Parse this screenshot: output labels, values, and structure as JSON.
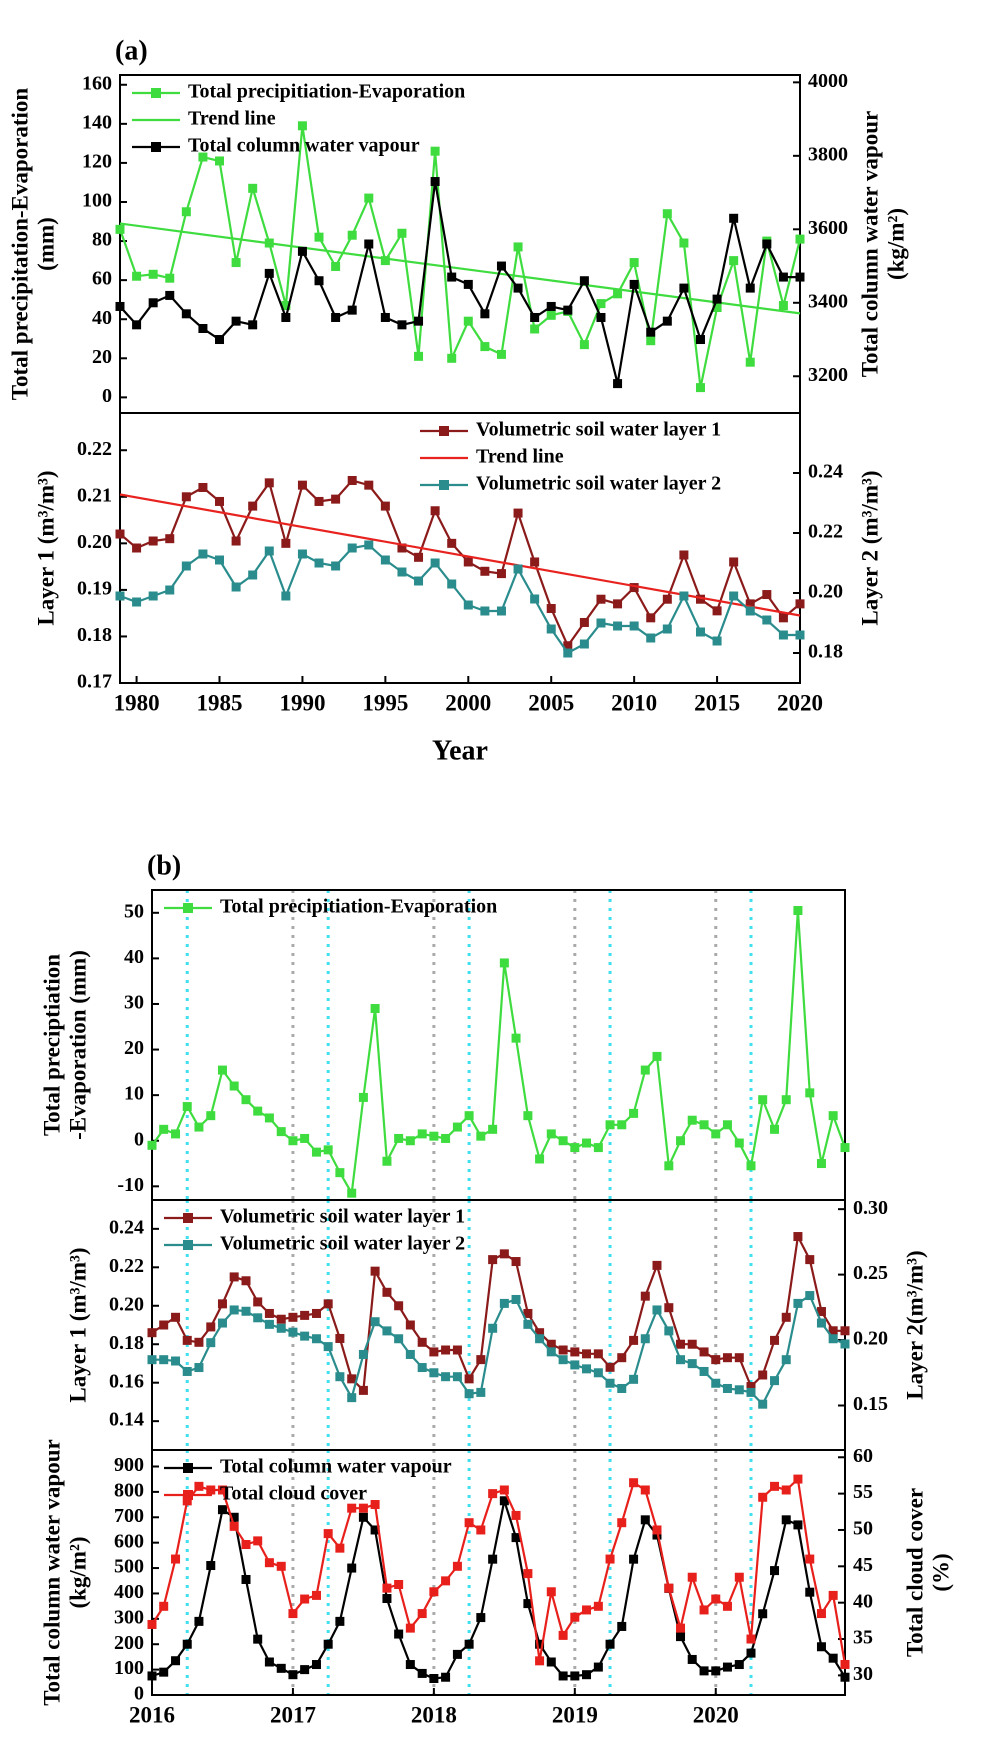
{
  "chart_data": [
    {
      "type": "line",
      "panel": "(a)",
      "legend": "upper left",
      "ylabel": [
        "Total precipitation-Evaporation",
        "(mm)"
      ],
      "y2label": [
        "Total column water vapour",
        "(kg/m²)"
      ],
      "xlim": [
        1979,
        2020
      ],
      "ylim": [
        -8,
        165
      ],
      "yticks": [
        0,
        20,
        40,
        60,
        80,
        100,
        120,
        140,
        160
      ],
      "y2lim": [
        3100,
        4020
      ],
      "y2ticks": [
        3200,
        3400,
        3600,
        3800,
        4000
      ],
      "x": [
        1979,
        1980,
        1981,
        1982,
        1983,
        1984,
        1985,
        1986,
        1987,
        1988,
        1989,
        1990,
        1991,
        1992,
        1993,
        1994,
        1995,
        1996,
        1997,
        1998,
        1999,
        2000,
        2001,
        2002,
        2003,
        2004,
        2005,
        2006,
        2007,
        2008,
        2009,
        2010,
        2011,
        2012,
        2013,
        2014,
        2015,
        2016,
        2017,
        2018,
        2019,
        2020
      ],
      "series": [
        {
          "name": "Total precipitiation-Evaporation",
          "color": "#3fdc3f",
          "marker": "square",
          "values": [
            86,
            62,
            63,
            61,
            95,
            123,
            121,
            69,
            107,
            79,
            47,
            139,
            82,
            67,
            83,
            102,
            70,
            84,
            21,
            126,
            20,
            39,
            26,
            22,
            77,
            35,
            42,
            44,
            27,
            48,
            53,
            69,
            29,
            94,
            79,
            5,
            46,
            70,
            18,
            80,
            47,
            81
          ]
        },
        {
          "name": "Trend line",
          "color": "#3fdc3f",
          "x": [
            1979,
            2020
          ],
          "values": [
            89,
            43
          ]
        },
        {
          "name": "Total column water vapour",
          "color": "#000000",
          "marker": "square",
          "axis": "y2",
          "values": [
            3390,
            3340,
            3400,
            3420,
            3370,
            3330,
            3300,
            3350,
            3340,
            3480,
            3360,
            3540,
            3460,
            3360,
            3380,
            3560,
            3360,
            3340,
            3350,
            3730,
            3470,
            3450,
            3370,
            3500,
            3440,
            3360,
            3390,
            3380,
            3460,
            3360,
            3180,
            3450,
            3320,
            3350,
            3440,
            3300,
            3410,
            3630,
            3440,
            3560,
            3470,
            3470
          ]
        }
      ]
    },
    {
      "type": "line",
      "legend": "upper right",
      "xlabel": "Year",
      "ylabel": [
        "Layer 1 (m³/m³)"
      ],
      "y2label": [
        "Layer 2 (m³/m³)"
      ],
      "xlim": [
        1979,
        2020
      ],
      "xticks": [
        1980,
        1985,
        1990,
        1995,
        2000,
        2005,
        2010,
        2015,
        2020
      ],
      "ylim": [
        0.17,
        0.228
      ],
      "yticks": [
        0.17,
        0.18,
        0.19,
        {
          "value": 0.2,
          "label": "0.20"
        },
        0.21,
        0.22
      ],
      "y2lim": [
        0.17,
        0.26
      ],
      "y2ticks": [
        0.18,
        {
          "value": 0.2,
          "label": "0.20"
        },
        0.22,
        0.24
      ],
      "x": [
        1979,
        1980,
        1981,
        1982,
        1983,
        1984,
        1985,
        1986,
        1987,
        1988,
        1989,
        1990,
        1991,
        1992,
        1993,
        1994,
        1995,
        1996,
        1997,
        1998,
        1999,
        2000,
        2001,
        2002,
        2003,
        2004,
        2005,
        2006,
        2007,
        2008,
        2009,
        2010,
        2011,
        2012,
        2013,
        2014,
        2015,
        2016,
        2017,
        2018,
        2019,
        2020
      ],
      "series": [
        {
          "name": "Volumetric soil water layer 1",
          "color": "#8b1a1a",
          "marker": "square",
          "values": [
            0.202,
            0.199,
            0.2005,
            0.201,
            0.21,
            0.212,
            0.209,
            0.2005,
            0.208,
            0.213,
            0.2,
            0.2125,
            0.209,
            0.2095,
            0.2135,
            0.2125,
            0.208,
            0.199,
            0.197,
            0.207,
            0.2,
            0.196,
            0.194,
            0.1935,
            0.2065,
            0.196,
            0.186,
            0.178,
            0.183,
            0.188,
            0.187,
            0.1905,
            0.184,
            0.188,
            0.1975,
            0.188,
            0.1855,
            0.196,
            0.187,
            0.189,
            0.184,
            0.187
          ]
        },
        {
          "name": "Trend line",
          "color": "#e8231f",
          "x": [
            1979,
            2020
          ],
          "values": [
            0.2105,
            0.1845
          ]
        },
        {
          "name": "Volumetric soil water layer 2",
          "color": "#2a8c8c",
          "marker": "square",
          "axis": "y2",
          "values": [
            0.199,
            0.197,
            0.199,
            0.201,
            0.209,
            0.213,
            0.211,
            0.202,
            0.206,
            0.214,
            0.199,
            0.213,
            0.21,
            0.209,
            0.215,
            0.216,
            0.211,
            0.207,
            0.204,
            0.21,
            0.203,
            0.196,
            0.194,
            0.194,
            0.208,
            0.198,
            0.188,
            0.18,
            0.183,
            0.19,
            0.189,
            0.189,
            0.185,
            0.188,
            0.199,
            0.187,
            0.184,
            0.199,
            0.194,
            0.191,
            0.186,
            0.186
          ]
        }
      ]
    },
    {
      "type": "line",
      "panel": "(b)",
      "legend": "upper left",
      "ylabel": [
        "Total preciptiation",
        "-Evaporation (mm)"
      ],
      "xlim": [
        2016,
        2020.917
      ],
      "ylim": [
        -13,
        55
      ],
      "yticks": [
        -10,
        0,
        10,
        20,
        30,
        40,
        50
      ],
      "reference_lines": [
        {
          "color": "#aaaaaa",
          "values": [
            2017,
            2018,
            2019,
            2020
          ]
        },
        {
          "color": "#3ee0f0",
          "values": [
            2016.25,
            2017.25,
            2018.25,
            2019.25,
            2020.25
          ]
        }
      ],
      "x": [
        2016,
        2016.083,
        2016.167,
        2016.25,
        2016.333,
        2016.417,
        2016.5,
        2016.583,
        2016.667,
        2016.75,
        2016.833,
        2016.917,
        2017,
        2017.083,
        2017.167,
        2017.25,
        2017.333,
        2017.417,
        2017.5,
        2017.583,
        2017.667,
        2017.75,
        2017.833,
        2017.917,
        2018,
        2018.083,
        2018.167,
        2018.25,
        2018.333,
        2018.417,
        2018.5,
        2018.583,
        2018.667,
        2018.75,
        2018.833,
        2018.917,
        2019,
        2019.083,
        2019.167,
        2019.25,
        2019.333,
        2019.417,
        2019.5,
        2019.583,
        2019.667,
        2019.75,
        2019.833,
        2019.917,
        2020,
        2020.083,
        2020.167,
        2020.25,
        2020.333,
        2020.417,
        2020.5,
        2020.583,
        2020.667,
        2020.75,
        2020.833,
        2020.917
      ],
      "series": [
        {
          "name": "Total precipitiation-Evaporation",
          "color": "#3fdc3f",
          "marker": "square",
          "values": [
            -1,
            2.5,
            1.5,
            7.5,
            3,
            5.5,
            15.5,
            12,
            9,
            6.5,
            5,
            2,
            0,
            0.5,
            -2.5,
            -2,
            -7,
            -11.5,
            9.5,
            29,
            -4.5,
            0.5,
            0,
            1.5,
            1,
            0.5,
            3,
            5.5,
            1,
            2.5,
            39,
            22.5,
            5.5,
            -4,
            1.5,
            0,
            -1.5,
            -0.5,
            -1.5,
            3.5,
            3.5,
            6,
            15.5,
            18.5,
            -5.5,
            0,
            4.5,
            3.5,
            1.5,
            3.5,
            -0.5,
            -5.5,
            9,
            2.5,
            9,
            50.5,
            10.5,
            -5,
            5.5,
            -1.5
          ]
        }
      ]
    },
    {
      "type": "line",
      "legend": "upper left",
      "ylabel": [
        "Layer 1 (m³/m³)"
      ],
      "y2label": [
        "Layer 2(m³/m³)"
      ],
      "xlim": [
        2016,
        2020.917
      ],
      "ylim": [
        0.125,
        0.255
      ],
      "yticks": [
        0.14,
        0.16,
        0.18,
        {
          "value": 0.2,
          "label": "0.20"
        },
        0.22,
        0.24
      ],
      "y2lim": [
        0.116,
        0.307
      ],
      "y2ticks": [
        0.15,
        {
          "value": 0.2,
          "label": "0.20"
        },
        0.25,
        {
          "value": 0.3,
          "label": "0.30"
        }
      ],
      "reference_lines": [
        {
          "color": "#aaaaaa",
          "values": [
            2017,
            2018,
            2019,
            2020
          ]
        },
        {
          "color": "#3ee0f0",
          "values": [
            2016.25,
            2017.25,
            2018.25,
            2019.25,
            2020.25
          ]
        }
      ],
      "x": [
        2016,
        2016.083,
        2016.167,
        2016.25,
        2016.333,
        2016.417,
        2016.5,
        2016.583,
        2016.667,
        2016.75,
        2016.833,
        2016.917,
        2017,
        2017.083,
        2017.167,
        2017.25,
        2017.333,
        2017.417,
        2017.5,
        2017.583,
        2017.667,
        2017.75,
        2017.833,
        2017.917,
        2018,
        2018.083,
        2018.167,
        2018.25,
        2018.333,
        2018.417,
        2018.5,
        2018.583,
        2018.667,
        2018.75,
        2018.833,
        2018.917,
        2019,
        2019.083,
        2019.167,
        2019.25,
        2019.333,
        2019.417,
        2019.5,
        2019.583,
        2019.667,
        2019.75,
        2019.833,
        2019.917,
        2020,
        2020.083,
        2020.167,
        2020.25,
        2020.333,
        2020.417,
        2020.5,
        2020.583,
        2020.667,
        2020.75,
        2020.833,
        2020.917
      ],
      "series": [
        {
          "name": "Volumetric soil water layer 1",
          "color": "#8b1a1a",
          "marker": "square",
          "values": [
            0.186,
            0.19,
            0.194,
            0.182,
            0.181,
            0.189,
            0.201,
            0.215,
            0.213,
            0.202,
            0.196,
            0.193,
            0.194,
            0.195,
            0.196,
            0.201,
            0.183,
            0.162,
            0.156,
            0.218,
            0.207,
            0.2,
            0.19,
            0.181,
            0.176,
            0.177,
            0.177,
            0.162,
            0.172,
            0.224,
            0.227,
            0.223,
            0.196,
            0.186,
            0.18,
            0.177,
            0.176,
            0.175,
            0.175,
            0.168,
            0.173,
            0.182,
            0.205,
            0.221,
            0.199,
            0.18,
            0.18,
            0.176,
            0.172,
            0.173,
            0.173,
            0.158,
            0.164,
            0.182,
            0.194,
            0.236,
            0.224,
            0.197,
            0.187,
            0.187
          ]
        },
        {
          "name": "Volumetric soil water layer 2",
          "color": "#2a8c8c",
          "marker": "square",
          "axis": "y2",
          "values": [
            0.185,
            0.185,
            0.184,
            0.176,
            0.179,
            0.198,
            0.213,
            0.223,
            0.222,
            0.217,
            0.212,
            0.209,
            0.206,
            0.203,
            0.201,
            0.195,
            0.172,
            0.156,
            0.189,
            0.214,
            0.207,
            0.201,
            0.189,
            0.179,
            0.175,
            0.172,
            0.172,
            0.159,
            0.16,
            0.209,
            0.228,
            0.231,
            0.212,
            0.201,
            0.191,
            0.185,
            0.181,
            0.178,
            0.175,
            0.167,
            0.163,
            0.17,
            0.201,
            0.223,
            0.207,
            0.185,
            0.182,
            0.176,
            0.167,
            0.163,
            0.162,
            0.16,
            0.151,
            0.169,
            0.185,
            0.228,
            0.234,
            0.213,
            0.201,
            0.197
          ]
        }
      ]
    },
    {
      "type": "line",
      "legend": "upper left",
      "ylabel": [
        "Total column water vapour",
        "(kg/m²)"
      ],
      "y2label": [
        "Total cloud cover",
        "(%)"
      ],
      "xlim": [
        2016,
        2020.917
      ],
      "xticks": [
        2016,
        2017,
        2018,
        2019,
        2020
      ],
      "ylim": [
        0,
        965
      ],
      "yticks": [
        0,
        100,
        200,
        300,
        400,
        500,
        600,
        700,
        800,
        900
      ],
      "y2lim": [
        27.3,
        61
      ],
      "y2ticks": [
        30,
        35,
        40,
        45,
        50,
        55,
        60
      ],
      "reference_lines": [
        {
          "color": "#aaaaaa",
          "values": [
            2017,
            2018,
            2019,
            2020
          ]
        },
        {
          "color": "#3ee0f0",
          "values": [
            2016.25,
            2017.25,
            2018.25,
            2019.25,
            2020.25
          ]
        }
      ],
      "x": [
        2016,
        2016.083,
        2016.167,
        2016.25,
        2016.333,
        2016.417,
        2016.5,
        2016.583,
        2016.667,
        2016.75,
        2016.833,
        2016.917,
        2017,
        2017.083,
        2017.167,
        2017.25,
        2017.333,
        2017.417,
        2017.5,
        2017.583,
        2017.667,
        2017.75,
        2017.833,
        2017.917,
        2018,
        2018.083,
        2018.167,
        2018.25,
        2018.333,
        2018.417,
        2018.5,
        2018.583,
        2018.667,
        2018.75,
        2018.833,
        2018.917,
        2019,
        2019.083,
        2019.167,
        2019.25,
        2019.333,
        2019.417,
        2019.5,
        2019.583,
        2019.667,
        2019.75,
        2019.833,
        2019.917,
        2020,
        2020.083,
        2020.167,
        2020.25,
        2020.333,
        2020.417,
        2020.5,
        2020.583,
        2020.667,
        2020.75,
        2020.833,
        2020.917
      ],
      "series": [
        {
          "name": "Total column water vapour",
          "color": "#000000",
          "marker": "square",
          "values": [
            75,
            90,
            135,
            200,
            290,
            510,
            730,
            700,
            455,
            220,
            130,
            105,
            80,
            100,
            120,
            200,
            290,
            500,
            700,
            650,
            380,
            240,
            120,
            85,
            65,
            70,
            160,
            200,
            305,
            535,
            765,
            620,
            360,
            200,
            130,
            75,
            75,
            80,
            110,
            200,
            270,
            535,
            690,
            630,
            420,
            230,
            140,
            95,
            95,
            110,
            120,
            165,
            320,
            490,
            690,
            670,
            405,
            190,
            145,
            70
          ]
        },
        {
          "name": "Total cloud cover",
          "color": "#e8201c",
          "marker": "square",
          "axis": "y2",
          "values": [
            37,
            39.5,
            46,
            54,
            56,
            55.5,
            55.5,
            50.5,
            48,
            48.5,
            45.5,
            45,
            38.5,
            40.5,
            41,
            49.5,
            47.5,
            53,
            53,
            53.5,
            42,
            42.5,
            36.5,
            38.5,
            41.5,
            43,
            45,
            51,
            50,
            55,
            55.5,
            52,
            44,
            32,
            41.5,
            35.5,
            38,
            39,
            39.5,
            46,
            51,
            56.5,
            55.5,
            50,
            42,
            36.5,
            43.5,
            39,
            40.5,
            39.5,
            43.5,
            35,
            54.5,
            56,
            55.5,
            57,
            46,
            38.5,
            41,
            31.5
          ]
        }
      ]
    }
  ]
}
